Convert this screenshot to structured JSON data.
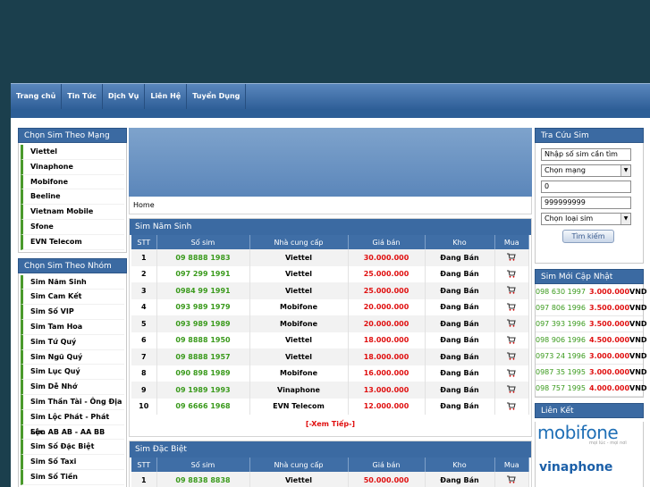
{
  "nav": [
    "Trang chủ",
    "Tin Tức",
    "Dịch Vụ",
    "Liên Hệ",
    "Tuyển Dụng"
  ],
  "left": {
    "network_title": "Chọn Sim Theo Mạng",
    "networks": [
      "Viettel",
      "Vinaphone",
      "Mobifone",
      "Beeline",
      "Vietnam Mobile",
      "Sfone",
      "EVN Telecom"
    ],
    "group_title": "Chọn Sim Theo Nhóm",
    "groups": [
      "Sim Năm Sinh",
      "Sim Cam Kết",
      "Sim Số VIP",
      "Sim Tam Hoa",
      "Sim Tứ Quý",
      "Sim Ngũ Quý",
      "Sim Lục Quý",
      "Sim Dễ Nhớ",
      "Sim Thần Tài - Ông Địa",
      "Sim Lộc Phát - Phát Lộc",
      "Sim AB AB - AA BB",
      "Sim Số Đặc Biệt",
      "Sim Số Taxi",
      "Sim Số Tiền"
    ]
  },
  "breadcrumb": "Home",
  "table_headers": [
    "STT",
    "Số sim",
    "Nhà cung cấp",
    "Giá bán",
    "Kho",
    "Mua"
  ],
  "nam_sinh": {
    "title": "Sim Năm Sinh",
    "rows": [
      [
        "1",
        "09 8888 1983",
        "Viettel",
        "30.000.000",
        "Đang Bán"
      ],
      [
        "2",
        "097 299 1991",
        "Viettel",
        "25.000.000",
        "Đang Bán"
      ],
      [
        "3",
        "0984 99 1991",
        "Viettel",
        "25.000.000",
        "Đang Bán"
      ],
      [
        "4",
        "093 989 1979",
        "Mobifone",
        "20.000.000",
        "Đang Bán"
      ],
      [
        "5",
        "093 989 1989",
        "Mobifone",
        "20.000.000",
        "Đang Bán"
      ],
      [
        "6",
        "09 8888 1950",
        "Viettel",
        "18.000.000",
        "Đang Bán"
      ],
      [
        "7",
        "09 8888 1957",
        "Viettel",
        "18.000.000",
        "Đang Bán"
      ],
      [
        "8",
        "090 898 1989",
        "Mobifone",
        "16.000.000",
        "Đang Bán"
      ],
      [
        "9",
        "09 1989 1993",
        "Vinaphone",
        "13.000.000",
        "Đang Bán"
      ],
      [
        "10",
        "09 6666 1968",
        "EVN Telecom",
        "12.000.000",
        "Đang Bán"
      ]
    ],
    "more": "[-Xem Tiếp-]"
  },
  "dac_biet": {
    "title": "Sim Đặc Biệt",
    "rows": [
      [
        "1",
        "09 8838 8838",
        "Viettel",
        "50.000.000",
        "Đang Bán"
      ]
    ]
  },
  "search": {
    "title": "Tra Cứu Sim",
    "input": "Nhập số sim cần tìm",
    "network": "Chọn mạng",
    "min": "0",
    "max": "999999999",
    "type": "Chọn loại sim",
    "button": "Tìm kiếm"
  },
  "new_sims": {
    "title": "Sim Mới Cập Nhật",
    "items": [
      [
        "098 630 1997",
        "3.000.000",
        "VND"
      ],
      [
        "097 806 1996",
        "3.500.000",
        "VND"
      ],
      [
        "097 393 1996",
        "3.500.000",
        "VND"
      ],
      [
        "098 906 1996",
        "4.500.000",
        "VND"
      ],
      [
        "0973 24 1996",
        "3.000.000",
        "VND"
      ],
      [
        "0987 35 1995",
        "3.000.000",
        "VND"
      ],
      [
        "098 757 1995",
        "4.000.000",
        "VND"
      ]
    ]
  },
  "links": {
    "title": "Liên Kết",
    "mobifone": "mobifone",
    "mobifone_tag": "mọi lúc - mọi nơi",
    "vinaphone": "vinaphone"
  }
}
